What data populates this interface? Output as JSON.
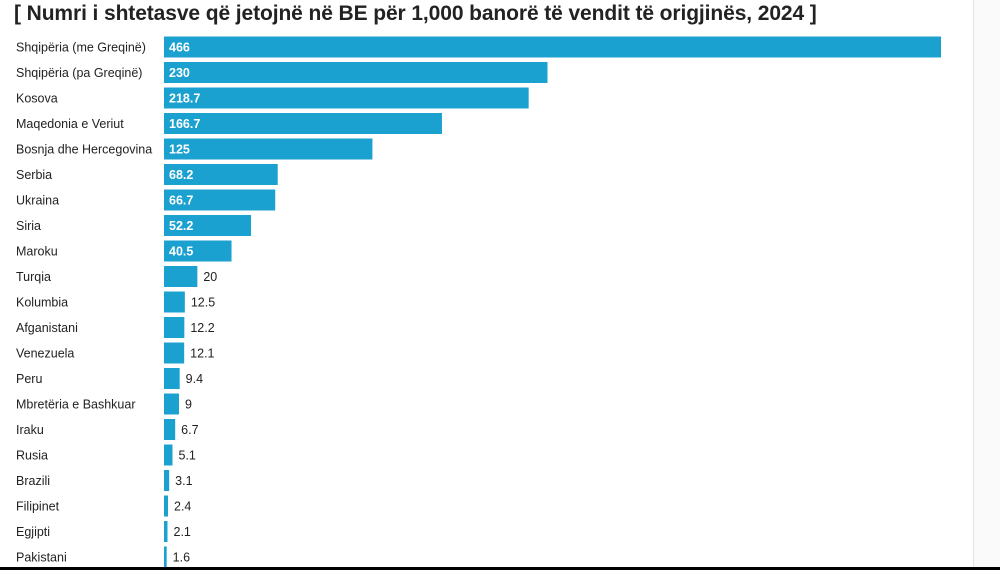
{
  "chart_data": {
    "type": "bar",
    "orientation": "horizontal",
    "title": "[ Numri i shtetasve që jetojnë në BE për 1,000 banorë të vendit të origjinës, 2024 ]",
    "categories": [
      "Shqipëria (me Greqinë)",
      "Shqipëria (pa Greqinë)",
      "Kosova",
      "Maqedonia e Veriut",
      "Bosnja dhe Hercegovina",
      "Serbia",
      "Ukraina",
      "Siria",
      "Maroku",
      "Turqia",
      "Kolumbia",
      "Afganistani",
      "Venezuela",
      "Peru",
      "Mbretëria e Bashkuar",
      "Iraku",
      "Rusia",
      "Brazili",
      "Filipinet",
      "Egjipti",
      "Pakistani"
    ],
    "values": [
      466,
      230,
      218.7,
      166.7,
      125,
      68.2,
      66.7,
      52.2,
      40.5,
      20,
      12.5,
      12.2,
      12.1,
      9.4,
      9,
      6.7,
      5.1,
      3.1,
      2.4,
      2.1,
      1.6
    ],
    "value_labels": [
      "466",
      "230",
      "218.7",
      "166.7",
      "125",
      "68.2",
      "66.7",
      "52.2",
      "40.5",
      "20",
      "12.5",
      "12.2",
      "12.1",
      "9.4",
      "9",
      "6.7",
      "5.1",
      "3.1",
      "2.4",
      "2.1",
      "1.6"
    ],
    "xlim": [
      0,
      466
    ],
    "grid": false,
    "legend": "none",
    "bar_color": "#1ba1cf"
  }
}
